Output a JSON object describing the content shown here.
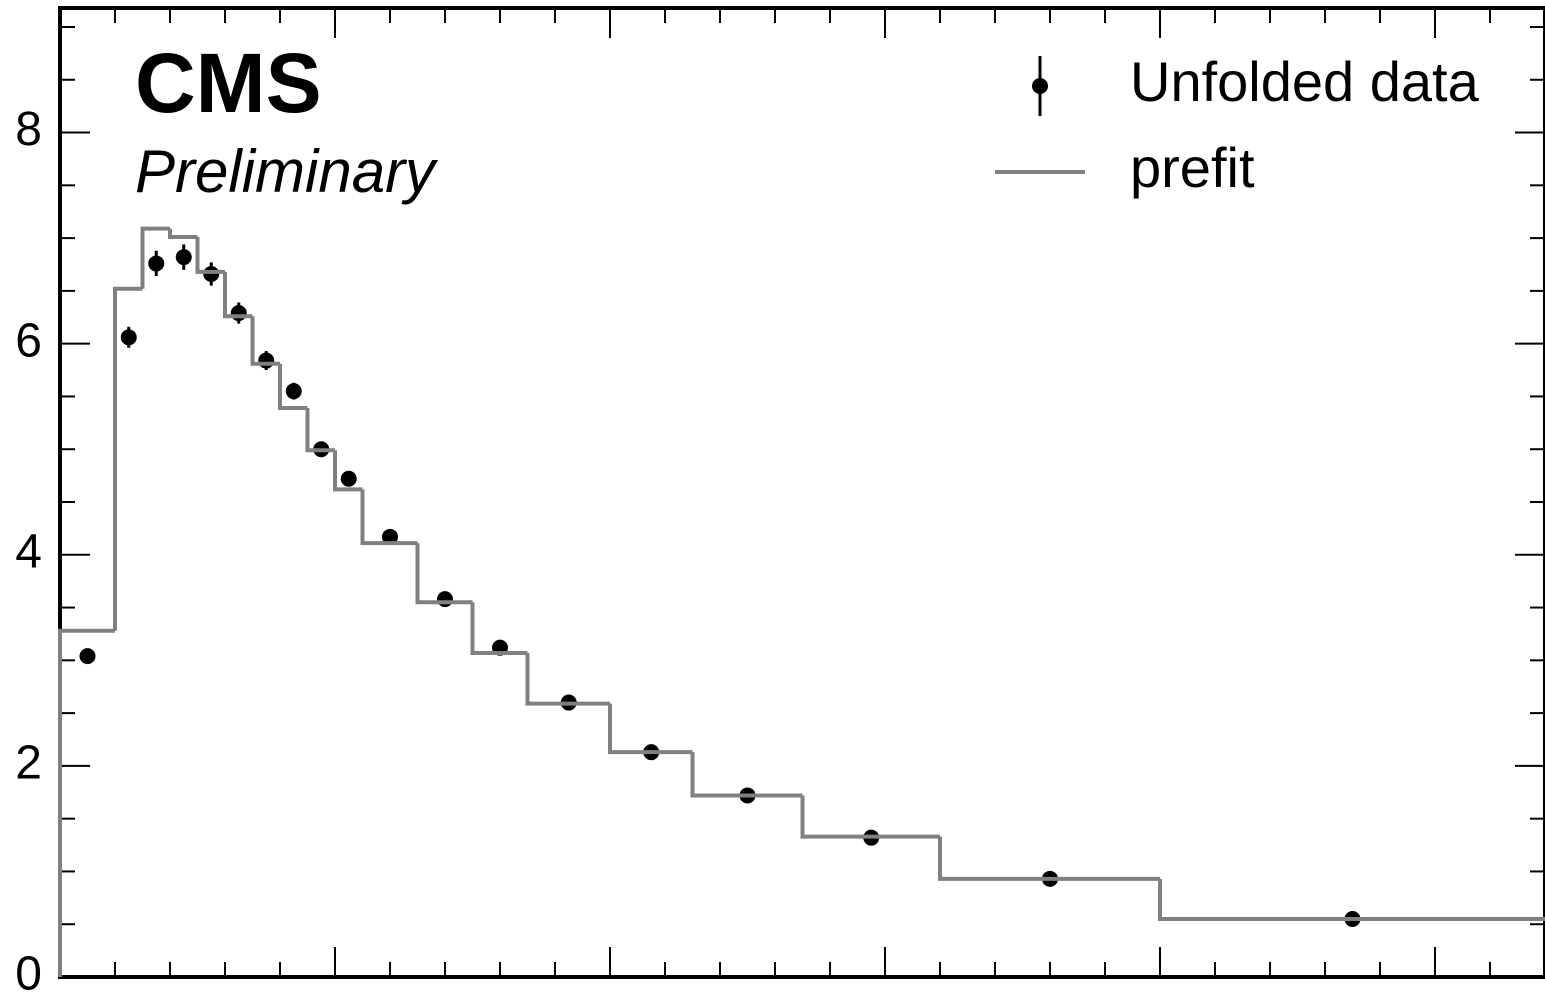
{
  "chart_data": {
    "type": "histogram",
    "title": "CMS",
    "subtitle": "Preliminary",
    "bins": [
      0,
      1,
      1.5,
      2,
      2.5,
      3,
      3.5,
      4,
      4.5,
      5,
      5.5,
      6.5,
      7.5,
      8.5,
      10,
      11.5,
      13.5,
      16,
      20,
      27
    ],
    "series": [
      {
        "name": "Unfolded data",
        "style": "points",
        "color": "#000000",
        "values": [
          3.04,
          6.06,
          6.76,
          6.82,
          6.66,
          6.29,
          5.84,
          5.55,
          5.0,
          4.72,
          4.17,
          3.58,
          3.12,
          2.6,
          2.13,
          1.72,
          1.32,
          0.93,
          0.55
        ],
        "errors": [
          0.05,
          0.1,
          0.12,
          0.12,
          0.11,
          0.1,
          0.09,
          0.08,
          0.07,
          0.06,
          0.05,
          0.05,
          0.04,
          0.04,
          0.03,
          0.03,
          0.03,
          0.02,
          0.02
        ]
      },
      {
        "name": "prefit",
        "style": "step",
        "color": "#808080",
        "values": [
          3.28,
          6.52,
          7.09,
          7.01,
          6.68,
          6.26,
          5.81,
          5.39,
          4.99,
          4.62,
          4.11,
          3.55,
          3.07,
          2.59,
          2.13,
          1.72,
          1.33,
          0.93,
          0.55
        ]
      }
    ],
    "xlim": [
      0,
      27
    ],
    "xticks": [
      5,
      10,
      15,
      20,
      25
    ],
    "xticks_minor": [
      1,
      2,
      3,
      4,
      6,
      7,
      8,
      9,
      11,
      12,
      13,
      14,
      16,
      17,
      18,
      19,
      21,
      22,
      23,
      24,
      26
    ],
    "ylim": [
      0,
      9.18
    ],
    "yticks": [
      0,
      2,
      4,
      6,
      8
    ],
    "yticks_minor": [
      0.5,
      1,
      1.5,
      2.5,
      3,
      3.5,
      4.5,
      5,
      5.5,
      6.5,
      7,
      7.5,
      8.5,
      9
    ],
    "legend": "upper right"
  }
}
